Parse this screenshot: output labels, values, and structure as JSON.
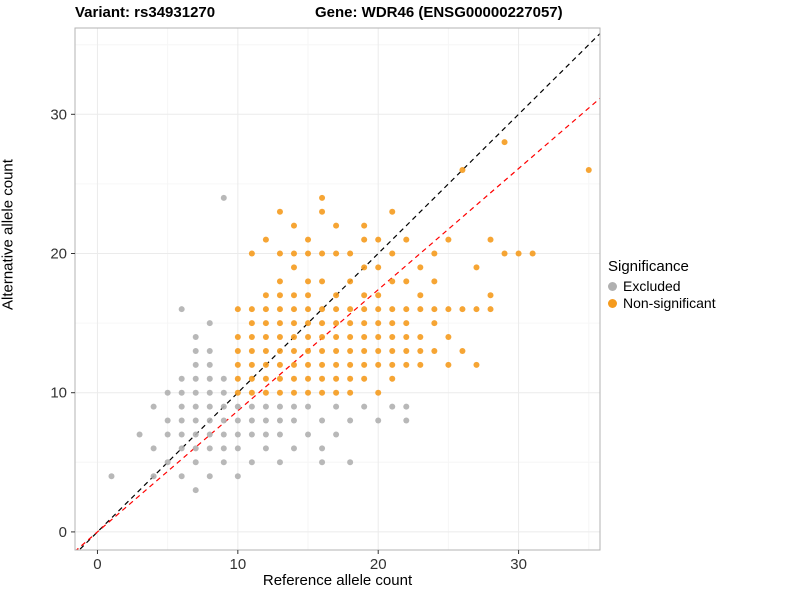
{
  "header": {
    "title_left": "Variant: rs34931270",
    "title_right": "Gene: WDR46 (ENSG00000227057)"
  },
  "chart_data": {
    "type": "scatter",
    "xlabel": "Reference allele count",
    "ylabel": "Alternative allele count",
    "xlim": [
      -1.6,
      35.8
    ],
    "ylim": [
      -1.3,
      36.2
    ],
    "xticks": [
      0,
      10,
      20,
      30
    ],
    "yticks": [
      0,
      10,
      20,
      30
    ],
    "minor_xticks": [
      5,
      15,
      25,
      35
    ],
    "minor_yticks": [
      5,
      15,
      25,
      35
    ],
    "grid": "major+minor",
    "colors": {
      "grid_major": "#ebebeb",
      "grid_minor": "#f6f6f6",
      "panel_border": "#b3b3b3",
      "tick": "#333333",
      "tick_label": "#333333"
    },
    "legend": {
      "title": "Significance",
      "position": "right-middle",
      "items": [
        {
          "label": "Excluded",
          "color": "#b0b0b0"
        },
        {
          "label": "Non-significant",
          "color": "#f59b1e"
        }
      ]
    },
    "reference_lines": [
      {
        "name": "identity-line",
        "slope": 1.0,
        "intercept": 0,
        "color": "#000000",
        "style": "dashed"
      },
      {
        "name": "regression-line",
        "slope": 0.87,
        "intercept": 0,
        "color": "#ff0000",
        "style": "dashed"
      }
    ],
    "series": [
      {
        "name": "Excluded",
        "color": "#b0b0b0",
        "points": [
          [
            1,
            4
          ],
          [
            3,
            7
          ],
          [
            4,
            4
          ],
          [
            4,
            6
          ],
          [
            4,
            9
          ],
          [
            5,
            5
          ],
          [
            5,
            7
          ],
          [
            5,
            8
          ],
          [
            5,
            10
          ],
          [
            6,
            4
          ],
          [
            6,
            6
          ],
          [
            6,
            7
          ],
          [
            6,
            8
          ],
          [
            6,
            9
          ],
          [
            6,
            10
          ],
          [
            6,
            11
          ],
          [
            6,
            16
          ],
          [
            7,
            3
          ],
          [
            7,
            5
          ],
          [
            7,
            6
          ],
          [
            7,
            7
          ],
          [
            7,
            8
          ],
          [
            7,
            9
          ],
          [
            7,
            10
          ],
          [
            7,
            11
          ],
          [
            7,
            12
          ],
          [
            7,
            13
          ],
          [
            7,
            14
          ],
          [
            8,
            4
          ],
          [
            8,
            6
          ],
          [
            8,
            7
          ],
          [
            8,
            8
          ],
          [
            8,
            9
          ],
          [
            8,
            10
          ],
          [
            8,
            11
          ],
          [
            8,
            12
          ],
          [
            8,
            13
          ],
          [
            8,
            15
          ],
          [
            9,
            5
          ],
          [
            9,
            6
          ],
          [
            9,
            7
          ],
          [
            9,
            8
          ],
          [
            9,
            9
          ],
          [
            9,
            10
          ],
          [
            9,
            11
          ],
          [
            9,
            24
          ],
          [
            10,
            4
          ],
          [
            10,
            6
          ],
          [
            10,
            7
          ],
          [
            10,
            8
          ],
          [
            10,
            9
          ],
          [
            11,
            5
          ],
          [
            11,
            7
          ],
          [
            11,
            8
          ],
          [
            11,
            9
          ],
          [
            12,
            6
          ],
          [
            12,
            7
          ],
          [
            12,
            8
          ],
          [
            12,
            9
          ],
          [
            13,
            5
          ],
          [
            13,
            7
          ],
          [
            13,
            8
          ],
          [
            13,
            9
          ],
          [
            14,
            6
          ],
          [
            14,
            8
          ],
          [
            14,
            9
          ],
          [
            15,
            7
          ],
          [
            15,
            9
          ],
          [
            16,
            5
          ],
          [
            16,
            6
          ],
          [
            16,
            8
          ],
          [
            17,
            7
          ],
          [
            17,
            9
          ],
          [
            18,
            5
          ],
          [
            18,
            8
          ],
          [
            19,
            9
          ],
          [
            20,
            8
          ],
          [
            21,
            9
          ],
          [
            22,
            8
          ],
          [
            22,
            9
          ]
        ]
      },
      {
        "name": "Non-significant",
        "color": "#f59b1e",
        "points": [
          [
            10,
            10
          ],
          [
            10,
            11
          ],
          [
            10,
            12
          ],
          [
            10,
            13
          ],
          [
            10,
            14
          ],
          [
            10,
            16
          ],
          [
            11,
            10
          ],
          [
            11,
            11
          ],
          [
            11,
            12
          ],
          [
            11,
            13
          ],
          [
            11,
            14
          ],
          [
            11,
            15
          ],
          [
            11,
            16
          ],
          [
            11,
            20
          ],
          [
            12,
            10
          ],
          [
            12,
            11
          ],
          [
            12,
            12
          ],
          [
            12,
            13
          ],
          [
            12,
            14
          ],
          [
            12,
            15
          ],
          [
            12,
            16
          ],
          [
            12,
            17
          ],
          [
            12,
            21
          ],
          [
            13,
            10
          ],
          [
            13,
            11
          ],
          [
            13,
            12
          ],
          [
            13,
            13
          ],
          [
            13,
            14
          ],
          [
            13,
            15
          ],
          [
            13,
            16
          ],
          [
            13,
            17
          ],
          [
            13,
            18
          ],
          [
            13,
            20
          ],
          [
            13,
            23
          ],
          [
            14,
            10
          ],
          [
            14,
            11
          ],
          [
            14,
            12
          ],
          [
            14,
            13
          ],
          [
            14,
            14
          ],
          [
            14,
            15
          ],
          [
            14,
            16
          ],
          [
            14,
            17
          ],
          [
            14,
            19
          ],
          [
            14,
            20
          ],
          [
            14,
            22
          ],
          [
            15,
            10
          ],
          [
            15,
            11
          ],
          [
            15,
            12
          ],
          [
            15,
            13
          ],
          [
            15,
            14
          ],
          [
            15,
            15
          ],
          [
            15,
            16
          ],
          [
            15,
            17
          ],
          [
            15,
            18
          ],
          [
            15,
            20
          ],
          [
            15,
            21
          ],
          [
            16,
            10
          ],
          [
            16,
            11
          ],
          [
            16,
            12
          ],
          [
            16,
            13
          ],
          [
            16,
            14
          ],
          [
            16,
            15
          ],
          [
            16,
            16
          ],
          [
            16,
            18
          ],
          [
            16,
            20
          ],
          [
            16,
            23
          ],
          [
            16,
            24
          ],
          [
            17,
            10
          ],
          [
            17,
            11
          ],
          [
            17,
            12
          ],
          [
            17,
            13
          ],
          [
            17,
            14
          ],
          [
            17,
            15
          ],
          [
            17,
            16
          ],
          [
            17,
            17
          ],
          [
            17,
            20
          ],
          [
            17,
            22
          ],
          [
            18,
            10
          ],
          [
            18,
            11
          ],
          [
            18,
            12
          ],
          [
            18,
            13
          ],
          [
            18,
            14
          ],
          [
            18,
            15
          ],
          [
            18,
            16
          ],
          [
            18,
            18
          ],
          [
            18,
            20
          ],
          [
            19,
            11
          ],
          [
            19,
            12
          ],
          [
            19,
            13
          ],
          [
            19,
            14
          ],
          [
            19,
            15
          ],
          [
            19,
            16
          ],
          [
            19,
            17
          ],
          [
            19,
            19
          ],
          [
            19,
            21
          ],
          [
            19,
            22
          ],
          [
            20,
            10
          ],
          [
            20,
            12
          ],
          [
            20,
            13
          ],
          [
            20,
            14
          ],
          [
            20,
            15
          ],
          [
            20,
            16
          ],
          [
            20,
            17
          ],
          [
            20,
            19
          ],
          [
            20,
            21
          ],
          [
            21,
            11
          ],
          [
            21,
            12
          ],
          [
            21,
            13
          ],
          [
            21,
            14
          ],
          [
            21,
            15
          ],
          [
            21,
            16
          ],
          [
            21,
            18
          ],
          [
            21,
            20
          ],
          [
            21,
            23
          ],
          [
            22,
            12
          ],
          [
            22,
            13
          ],
          [
            22,
            14
          ],
          [
            22,
            15
          ],
          [
            22,
            16
          ],
          [
            22,
            18
          ],
          [
            22,
            21
          ],
          [
            23,
            12
          ],
          [
            23,
            13
          ],
          [
            23,
            14
          ],
          [
            23,
            16
          ],
          [
            23,
            17
          ],
          [
            23,
            19
          ],
          [
            24,
            13
          ],
          [
            24,
            15
          ],
          [
            24,
            16
          ],
          [
            24,
            18
          ],
          [
            24,
            20
          ],
          [
            25,
            12
          ],
          [
            25,
            14
          ],
          [
            25,
            16
          ],
          [
            25,
            21
          ],
          [
            26,
            13
          ],
          [
            26,
            16
          ],
          [
            26,
            26
          ],
          [
            27,
            12
          ],
          [
            27,
            16
          ],
          [
            27,
            19
          ],
          [
            28,
            16
          ],
          [
            28,
            17
          ],
          [
            28,
            21
          ],
          [
            29,
            20
          ],
          [
            29,
            28
          ],
          [
            30,
            20
          ],
          [
            31,
            20
          ],
          [
            35,
            26
          ]
        ]
      }
    ]
  }
}
